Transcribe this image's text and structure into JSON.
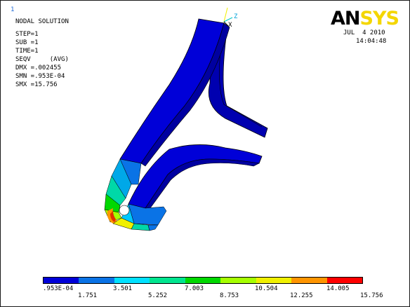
{
  "window_number": "1",
  "title": "NODAL SOLUTION",
  "info_lines": [
    "STEP=1",
    "SUB =1",
    "TIME=1",
    "SEQV     (AVG)",
    "DMX =.002455",
    "SMN =.953E-04",
    "SMX =15.756"
  ],
  "logo": {
    "an": "AN",
    "sys": "SYS"
  },
  "date": "JUL  4 2010",
  "time": "14:04:48",
  "triad": {
    "z": "Z",
    "x": "X"
  },
  "colors": {
    "logo_yellow": "#f4d600",
    "contour": [
      "#0000d8",
      "#0a73e6",
      "#00e1ff",
      "#00e58f",
      "#00d800",
      "#a6ff00",
      "#f0f000",
      "#ff9500",
      "#ff0000"
    ]
  },
  "legend": {
    "top_labels": [
      ".953E-04",
      "3.501",
      "7.003",
      "10.504",
      "14.005"
    ],
    "bottom_labels": [
      "1.751",
      "5.252",
      "8.753",
      "12.255",
      "15.756"
    ]
  }
}
